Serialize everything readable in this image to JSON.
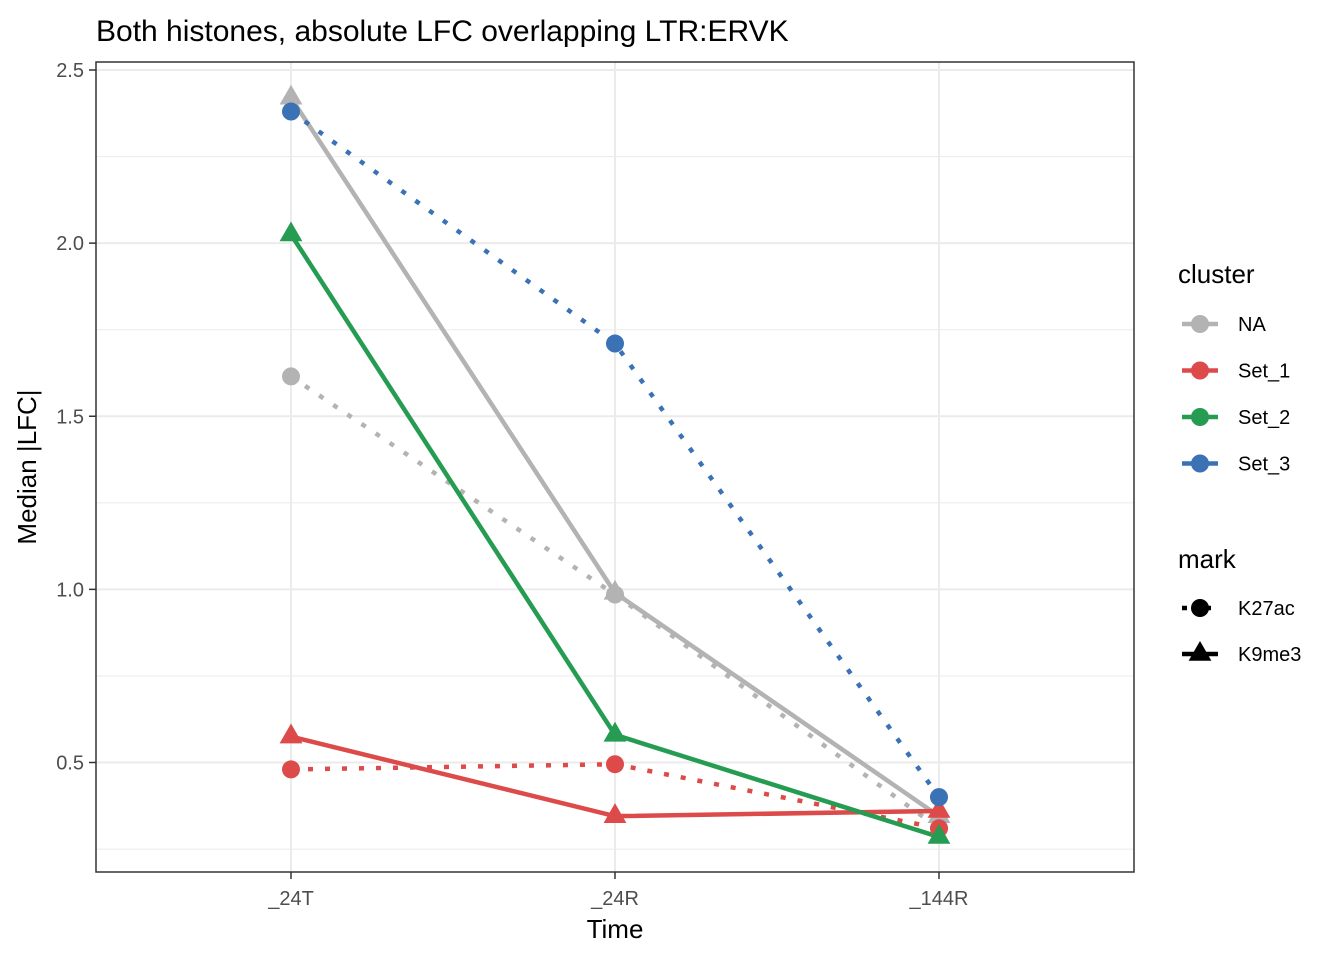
{
  "chart_data": {
    "type": "line",
    "title": "Both histones, absolute LFC overlapping LTR:ERVK",
    "xlabel": "Time",
    "ylabel": "Median |LFC|",
    "categories": [
      "_24T",
      "_24R",
      "_144R"
    ],
    "ylim": [
      0.22,
      2.55
    ],
    "yticks": [
      0.5,
      1.0,
      1.5,
      2.0,
      2.5
    ],
    "ytick_labels": [
      "0.5",
      "1.0",
      "1.5",
      "2.0",
      "2.5"
    ],
    "grid": true,
    "legend_position": "right",
    "legend": {
      "cluster": {
        "title": "cluster",
        "entries": [
          {
            "label": "NA",
            "color": "#b3b3b3"
          },
          {
            "label": "Set_1",
            "color": "#dc4a4a"
          },
          {
            "label": "Set_2",
            "color": "#259c52"
          },
          {
            "label": "Set_3",
            "color": "#3a72b5"
          }
        ]
      },
      "mark": {
        "title": "mark",
        "entries": [
          {
            "label": "K27ac",
            "linestyle": "dotted",
            "shape": "circle"
          },
          {
            "label": "K9me3",
            "linestyle": "solid",
            "shape": "triangle"
          }
        ]
      }
    },
    "series": [
      {
        "cluster": "NA",
        "mark": "K27ac",
        "color": "#b3b3b3",
        "values": [
          1.615,
          0.985,
          0.31
        ]
      },
      {
        "cluster": "NA",
        "mark": "K9me3",
        "color": "#b3b3b3",
        "values": [
          2.42,
          0.99,
          0.345
        ]
      },
      {
        "cluster": "Set_1",
        "mark": "K27ac",
        "color": "#dc4a4a",
        "values": [
          0.48,
          0.495,
          0.31
        ]
      },
      {
        "cluster": "Set_1",
        "mark": "K9me3",
        "color": "#dc4a4a",
        "values": [
          0.575,
          0.345,
          0.36
        ]
      },
      {
        "cluster": "Set_2",
        "mark": "K9me3",
        "color": "#259c52",
        "values": [
          2.025,
          0.58,
          0.285
        ]
      },
      {
        "cluster": "Set_3",
        "mark": "K27ac",
        "color": "#3a72b5",
        "values": [
          2.38,
          1.71,
          0.4
        ]
      }
    ]
  }
}
